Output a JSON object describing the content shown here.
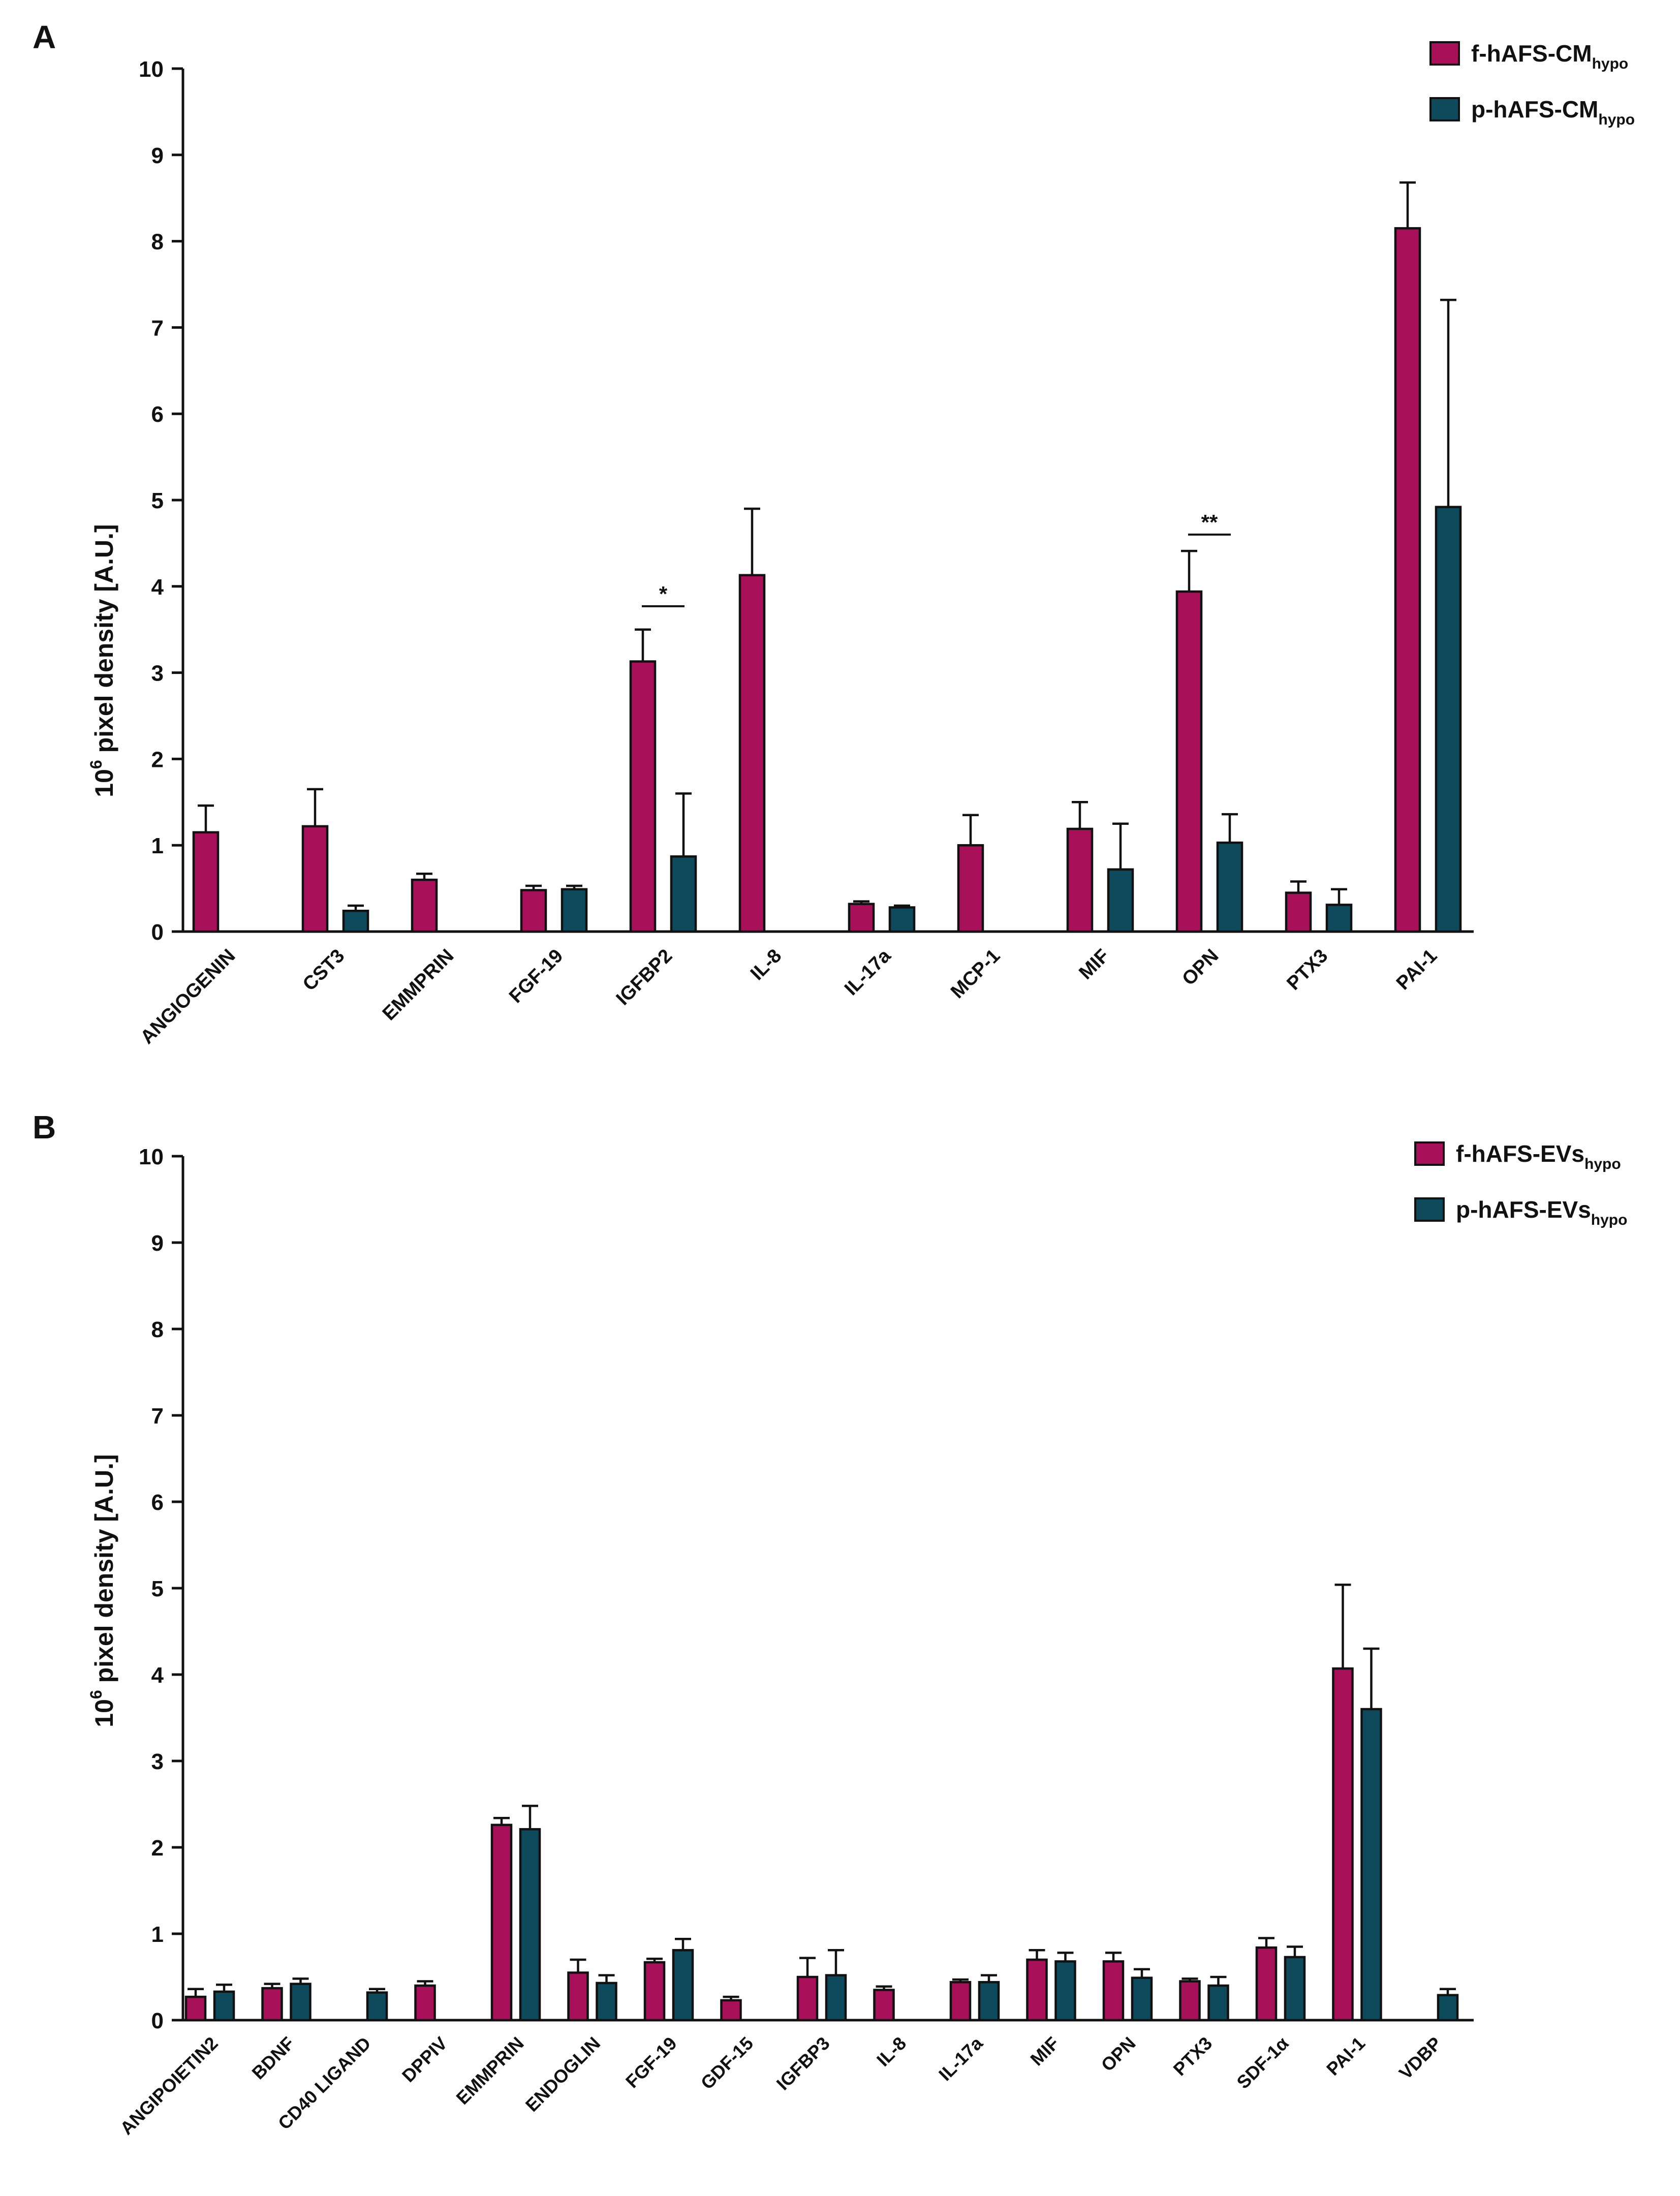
{
  "colors": {
    "f": "#a8115a",
    "p": "#0d4a5c",
    "axis": "#111111"
  },
  "chart_data": [
    {
      "type": "bar",
      "panel_label": "A",
      "ylabel": {
        "base": "10",
        "exp": "6",
        "rest": " pixel density [A.U.]"
      },
      "ylim": [
        0,
        10
      ],
      "yticks": [
        0,
        1,
        2,
        3,
        4,
        5,
        6,
        7,
        8,
        9,
        10
      ],
      "categories": [
        "ANGIOGENIN",
        "CST3",
        "EMMPRIN",
        "FGF-19",
        "IGFBP2",
        "IL-8",
        "IL-17a",
        "MCP-1",
        "MIF",
        "OPN",
        "PTX3",
        "PAI-1"
      ],
      "series": [
        {
          "name": "f-hAFS-CM",
          "sub": "hypo",
          "color_key": "f",
          "values": [
            1.15,
            1.22,
            0.6,
            0.48,
            3.13,
            4.13,
            0.32,
            1.0,
            1.19,
            3.94,
            0.45,
            8.15
          ],
          "errors": [
            0.31,
            0.43,
            0.07,
            0.05,
            0.37,
            0.77,
            0.03,
            0.35,
            0.31,
            0.47,
            0.13,
            0.53
          ]
        },
        {
          "name": "p-hAFS-CM",
          "sub": "hypo",
          "color_key": "p",
          "values": [
            null,
            0.24,
            null,
            0.49,
            0.87,
            null,
            0.28,
            null,
            0.72,
            1.03,
            0.31,
            4.92
          ],
          "errors": [
            null,
            0.06,
            null,
            0.04,
            0.73,
            null,
            0.02,
            null,
            0.53,
            0.33,
            0.18,
            2.4
          ]
        }
      ],
      "significance": [
        {
          "category": "IGFBP2",
          "label": "*",
          "y": 3.77
        },
        {
          "category": "OPN",
          "label": "**",
          "y": 4.6
        }
      ]
    },
    {
      "type": "bar",
      "panel_label": "B",
      "ylabel": {
        "base": "10",
        "exp": "6",
        "rest": " pixel density [A.U.]"
      },
      "ylim": [
        0,
        10
      ],
      "yticks": [
        0,
        1,
        2,
        3,
        4,
        5,
        6,
        7,
        8,
        9,
        10
      ],
      "categories": [
        "ANGIPOIETIN2",
        "BDNF",
        "CD40 LIGAND",
        "DPPIV",
        "EMMPRIN",
        "ENDOGLIN",
        "FGF-19",
        "GDF-15",
        "IGFBP3",
        "IL-8",
        "IL-17a",
        "MIF",
        "OPN",
        "PTX3",
        "SDF-1α",
        "PAI-1",
        "VDBP"
      ],
      "series": [
        {
          "name": "f-hAFS-EVs",
          "sub": "hypo",
          "color_key": "f",
          "values": [
            0.27,
            0.37,
            null,
            0.4,
            2.26,
            0.55,
            0.67,
            0.23,
            0.5,
            0.35,
            0.44,
            0.7,
            0.68,
            0.45,
            0.84,
            4.07,
            null
          ],
          "errors": [
            0.09,
            0.05,
            null,
            0.05,
            0.08,
            0.15,
            0.04,
            0.04,
            0.22,
            0.04,
            0.03,
            0.11,
            0.1,
            0.03,
            0.11,
            0.97,
            null
          ]
        },
        {
          "name": "p-hAFS-EVs",
          "sub": "hypo",
          "color_key": "p",
          "values": [
            0.33,
            0.42,
            0.32,
            null,
            2.21,
            0.43,
            0.81,
            null,
            0.52,
            null,
            0.44,
            0.68,
            0.49,
            0.4,
            0.73,
            3.6,
            0.29
          ],
          "errors": [
            0.08,
            0.06,
            0.04,
            null,
            0.27,
            0.09,
            0.13,
            null,
            0.29,
            null,
            0.08,
            0.1,
            0.1,
            0.1,
            0.12,
            0.7,
            0.07
          ]
        }
      ],
      "significance": []
    }
  ]
}
